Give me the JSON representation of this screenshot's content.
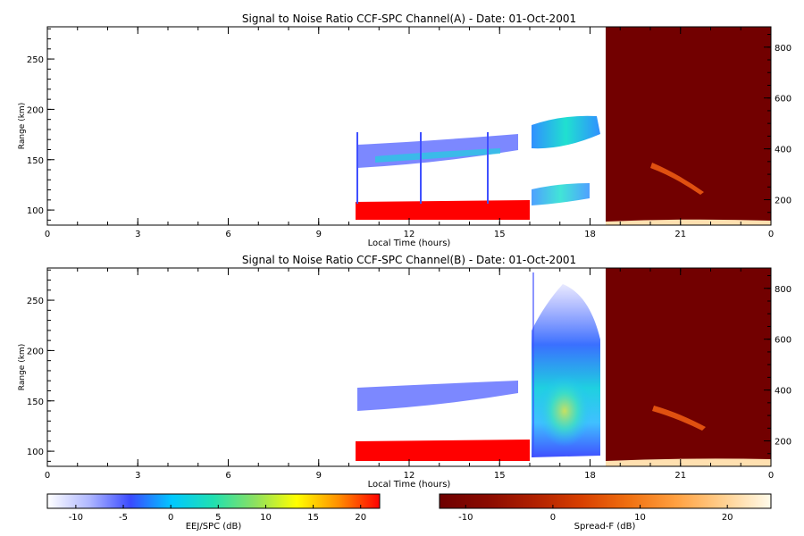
{
  "chart_data": [
    {
      "type": "heatmap",
      "title": "Signal to Noise Ratio CCF-SPC Channel(A) - Date: 01-Oct-2001",
      "xlabel": "Local Time (hours)",
      "ylabel": "Range (km)",
      "xlim": [
        0,
        24
      ],
      "ylim": [
        85,
        282
      ],
      "y2lim": [
        100,
        880
      ],
      "x_ticks": [
        "0",
        "3",
        "6",
        "9",
        "12",
        "15",
        "18",
        "21",
        "0"
      ],
      "y_ticks": [
        "100",
        "150",
        "200",
        "250"
      ],
      "y2_ticks": [
        "200",
        "400",
        "600",
        "800"
      ],
      "eej_window_hours": [
        10.3,
        16.1
      ],
      "spread_f_window_hours": [
        18.6,
        24
      ],
      "layers": [
        {
          "label": "red_band",
          "x": [
            10.3,
            16.1
          ],
          "y": [
            91,
            106
          ]
        },
        {
          "label": "echo_upper",
          "x": [
            10.4,
            15.7
          ],
          "y": [
            140,
            166
          ]
        },
        {
          "label": "echo_high",
          "x": [
            16.1,
            18.3
          ],
          "y": [
            165,
            190
          ]
        },
        {
          "label": "echo_mid",
          "x": [
            16.1,
            17.9
          ],
          "y": [
            105,
            125
          ]
        }
      ]
    },
    {
      "type": "heatmap",
      "title": "Signal to Noise Ratio CCF-SPC Channel(B) - Date: 01-Oct-2001",
      "xlabel": "Local Time (hours)",
      "ylabel": "Range (km)",
      "xlim": [
        0,
        24
      ],
      "ylim": [
        85,
        282
      ],
      "y2lim": [
        100,
        880
      ],
      "x_ticks": [
        "0",
        "3",
        "6",
        "9",
        "12",
        "15",
        "18",
        "21",
        "0"
      ],
      "y_ticks": [
        "100",
        "150",
        "200",
        "250"
      ],
      "y2_ticks": [
        "200",
        "400",
        "600",
        "800"
      ],
      "eej_window_hours": [
        10.3,
        16.1
      ],
      "spread_f_window_hours": [
        18.6,
        24
      ],
      "layers": [
        {
          "label": "red_band",
          "x": [
            10.3,
            16.1
          ],
          "y": [
            91,
            110
          ]
        },
        {
          "label": "echo_upper",
          "x": [
            10.4,
            15.7
          ],
          "y": [
            140,
            166
          ]
        },
        {
          "label": "plume",
          "x": [
            16.1,
            18.5
          ],
          "y": [
            95,
            260
          ]
        }
      ]
    }
  ],
  "colorbars": [
    {
      "label": "EEJ/SPC (dB)",
      "ticks": [
        "-10",
        "-5",
        "0",
        "5",
        "10",
        "15",
        "20"
      ],
      "range": [
        -13,
        22
      ],
      "colors": [
        "#ffffff",
        "#b0b8ff",
        "#3a4aff",
        "#00c8ff",
        "#20e0b0",
        "#8ce060",
        "#ffff00",
        "#ff9000",
        "#ff0000"
      ]
    },
    {
      "label": "Spread-F (dB)",
      "ticks": [
        "-10",
        "0",
        "10",
        "20"
      ],
      "range": [
        -13,
        25
      ],
      "colors": [
        "#6e0000",
        "#8a0a00",
        "#b02000",
        "#d84000",
        "#f07010",
        "#ffa040",
        "#ffd090",
        "#fffbea"
      ]
    }
  ],
  "colors": {
    "spread_bg": "#720000",
    "eej_red": "#ff0000"
  }
}
